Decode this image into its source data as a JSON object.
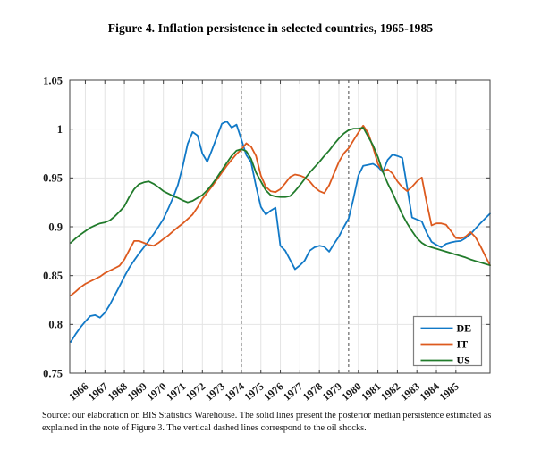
{
  "figure": {
    "title": "Figure 4. Inflation persistence in selected countries, 1965-1985",
    "footnote_line1": "Source: our elaboration on BIS Statistics Warehouse. The solid lines present the posterior median persistence estimated as",
    "footnote_line2": "explained in the note of Figure 3. The vertical dashed lines correspond to the oil shocks."
  },
  "chart_data": {
    "type": "line",
    "title": "Figure 4. Inflation persistence in selected countries, 1965-1985",
    "xlabel": "",
    "ylabel": "",
    "xlim": [
      1965.2,
      1986.75
    ],
    "ylim": [
      0.75,
      1.05
    ],
    "grid": true,
    "legend_position": "bottom-right",
    "x_ticks": [
      1966,
      1967,
      1968,
      1969,
      1970,
      1971,
      1972,
      1973,
      1974,
      1975,
      1976,
      1977,
      1978,
      1979,
      1980,
      1981,
      1982,
      1983,
      1984,
      1985
    ],
    "y_ticks": [
      0.75,
      0.8,
      0.85,
      0.9,
      0.95,
      1,
      1.05
    ],
    "y_tick_labels": [
      "0.75",
      "0.8",
      "0.85",
      "0.9",
      "0.95",
      "1",
      "1.05"
    ],
    "oil_shock_lines": [
      1974.0,
      1979.5
    ],
    "x_start": 1965.25,
    "x_step": 0.25,
    "series": [
      {
        "name": "DE",
        "color": "#1179c7",
        "values": [
          0.782,
          0.79,
          0.797,
          0.803,
          0.8085,
          0.8095,
          0.807,
          0.812,
          0.82,
          0.8295,
          0.839,
          0.849,
          0.858,
          0.8655,
          0.8725,
          0.879,
          0.8855,
          0.8925,
          0.9,
          0.908,
          0.9185,
          0.93,
          0.943,
          0.9625,
          0.985,
          0.997,
          0.9935,
          0.975,
          0.9665,
          0.979,
          0.9925,
          1.0055,
          1.008,
          1.0015,
          1.0045,
          0.9895,
          0.9735,
          0.966,
          0.9415,
          0.9205,
          0.9125,
          0.9165,
          0.9195,
          0.8805,
          0.8755,
          0.866,
          0.8565,
          0.8605,
          0.8655,
          0.8755,
          0.879,
          0.8805,
          0.8795,
          0.8745,
          0.8825,
          0.89,
          0.8995,
          0.9085,
          0.929,
          0.9525,
          0.9625,
          0.9635,
          0.9645,
          0.9615,
          0.956,
          0.9685,
          0.974,
          0.9725,
          0.9705,
          0.9405,
          0.9095,
          0.9075,
          0.9055,
          0.894,
          0.8845,
          0.8815,
          0.879,
          0.8825,
          0.884,
          0.885,
          0.8855,
          0.8885,
          0.8925,
          0.898,
          0.9035,
          0.9085,
          0.9135
        ]
      },
      {
        "name": "IT",
        "color": "#dd5a1e",
        "values": [
          0.8295,
          0.8335,
          0.838,
          0.8415,
          0.844,
          0.8465,
          0.849,
          0.8525,
          0.855,
          0.8575,
          0.86,
          0.8665,
          0.876,
          0.8855,
          0.8855,
          0.8835,
          0.8815,
          0.8805,
          0.8835,
          0.8875,
          0.891,
          0.8955,
          0.8995,
          0.9035,
          0.908,
          0.9125,
          0.92,
          0.9285,
          0.935,
          0.9415,
          0.9485,
          0.9555,
          0.9625,
          0.9685,
          0.9745,
          0.979,
          0.9855,
          0.982,
          0.9725,
          0.9525,
          0.941,
          0.9365,
          0.9355,
          0.9385,
          0.9445,
          0.951,
          0.9535,
          0.9525,
          0.9505,
          0.9465,
          0.9405,
          0.9365,
          0.9345,
          0.9425,
          0.9545,
          0.9665,
          0.975,
          0.9805,
          0.9885,
          0.9965,
          1.0035,
          0.996,
          0.9815,
          0.9645,
          0.9565,
          0.959,
          0.9545,
          0.9465,
          0.9405,
          0.9365,
          0.941,
          0.9465,
          0.9505,
          0.925,
          0.9015,
          0.9035,
          0.9035,
          0.902,
          0.8955,
          0.8885,
          0.888,
          0.89,
          0.8945,
          0.8895,
          0.8805,
          0.8705,
          0.8605
        ]
      },
      {
        "name": "US",
        "color": "#217b2b",
        "values": [
          0.8835,
          0.888,
          0.892,
          0.8955,
          0.899,
          0.9015,
          0.9035,
          0.9045,
          0.9065,
          0.9105,
          0.9155,
          0.921,
          0.9305,
          0.9385,
          0.9435,
          0.9455,
          0.9465,
          0.944,
          0.9405,
          0.9365,
          0.934,
          0.9315,
          0.9295,
          0.927,
          0.925,
          0.9265,
          0.9295,
          0.9325,
          0.9375,
          0.9435,
          0.9505,
          0.958,
          0.9655,
          0.9725,
          0.978,
          0.9795,
          0.9775,
          0.9695,
          0.9555,
          0.9465,
          0.9375,
          0.9325,
          0.931,
          0.9305,
          0.9305,
          0.9315,
          0.9365,
          0.9425,
          0.949,
          0.9555,
          0.961,
          0.9665,
          0.9725,
          0.978,
          0.9845,
          0.9905,
          0.9955,
          0.999,
          1.0005,
          1.0005,
          1.0015,
          0.9925,
          0.9835,
          0.9715,
          0.9565,
          0.9445,
          0.9345,
          0.9235,
          0.9125,
          0.9035,
          0.8955,
          0.8885,
          0.8835,
          0.8805,
          0.879,
          0.8775,
          0.876,
          0.8745,
          0.873,
          0.8715,
          0.87,
          0.8685,
          0.8665,
          0.865,
          0.8635,
          0.862,
          0.8605
        ]
      }
    ],
    "style_colors": {
      "grid": "#e4e4e4",
      "frame": "#404040",
      "dashed_line": "#4a4a4a",
      "tick_label": "#1a1a1a",
      "legend_border": "#7f7f7f"
    }
  }
}
